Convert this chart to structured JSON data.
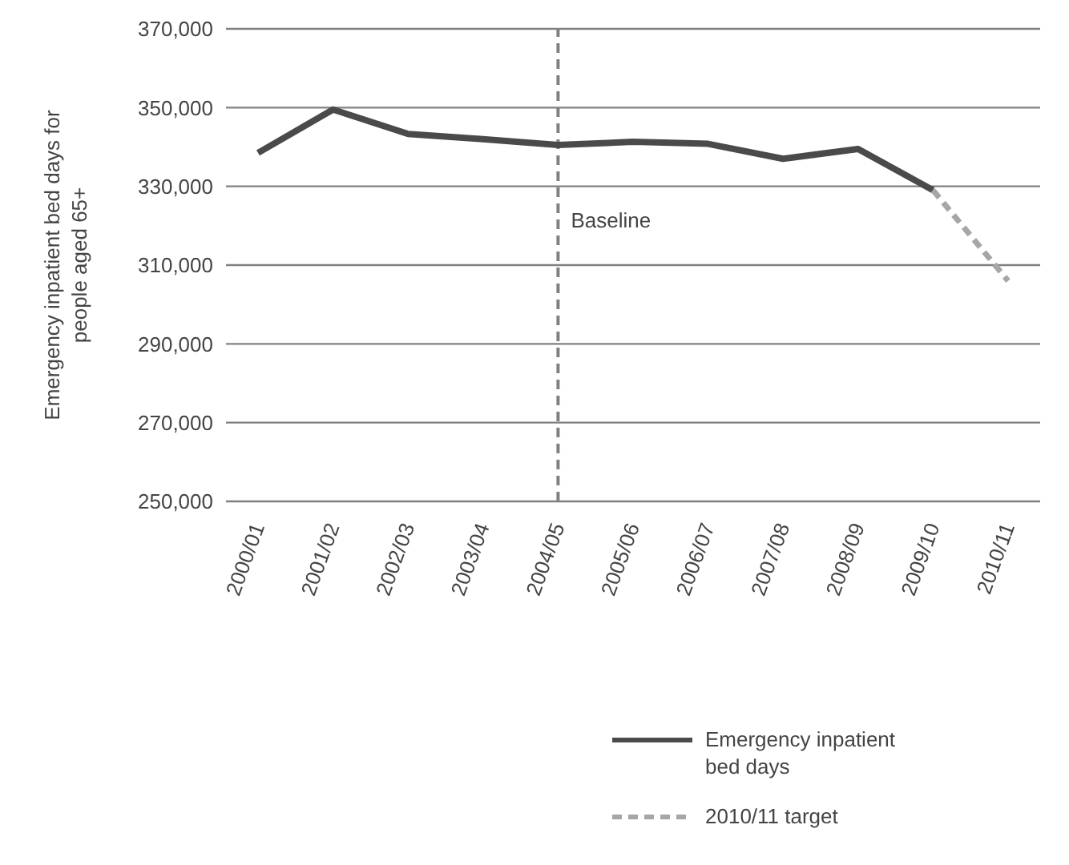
{
  "chart_data": {
    "type": "line",
    "ylabel": "Emergency inpatient bed days for people aged 65+",
    "categories": [
      "2000/01",
      "2001/02",
      "2002/03",
      "2003/04",
      "2004/05",
      "2005/06",
      "2006/07",
      "2007/08",
      "2008/09",
      "2009/10",
      "2010/11"
    ],
    "series": [
      {
        "name": "Emergency inpatient bed days",
        "color": "#4a4a4a",
        "line_style": "solid",
        "values": [
          338500,
          349500,
          343300,
          342000,
          340500,
          341300,
          340800,
          337000,
          339500,
          329000,
          null
        ]
      },
      {
        "name": "2010/11 target",
        "color": "#a6a6a6",
        "line_style": "dashed",
        "values": [
          null,
          null,
          null,
          null,
          null,
          null,
          null,
          null,
          null,
          329000,
          306000
        ]
      }
    ],
    "ylim": [
      250000,
      370000
    ],
    "yticks": [
      {
        "value": 250000,
        "label": "250,000"
      },
      {
        "value": 270000,
        "label": "270,000"
      },
      {
        "value": 290000,
        "label": "290,000"
      },
      {
        "value": 310000,
        "label": "310,000"
      },
      {
        "value": 330000,
        "label": "330,000"
      },
      {
        "value": 350000,
        "label": "350,000"
      },
      {
        "value": 370000,
        "label": "370,000"
      }
    ],
    "grid": "y",
    "legend": "bottom",
    "marker": "none",
    "ref_lines": [
      {
        "axis": "x",
        "value": "2004/05",
        "label": "Baseline",
        "color": "#808080",
        "line_style": "dashed"
      }
    ]
  }
}
